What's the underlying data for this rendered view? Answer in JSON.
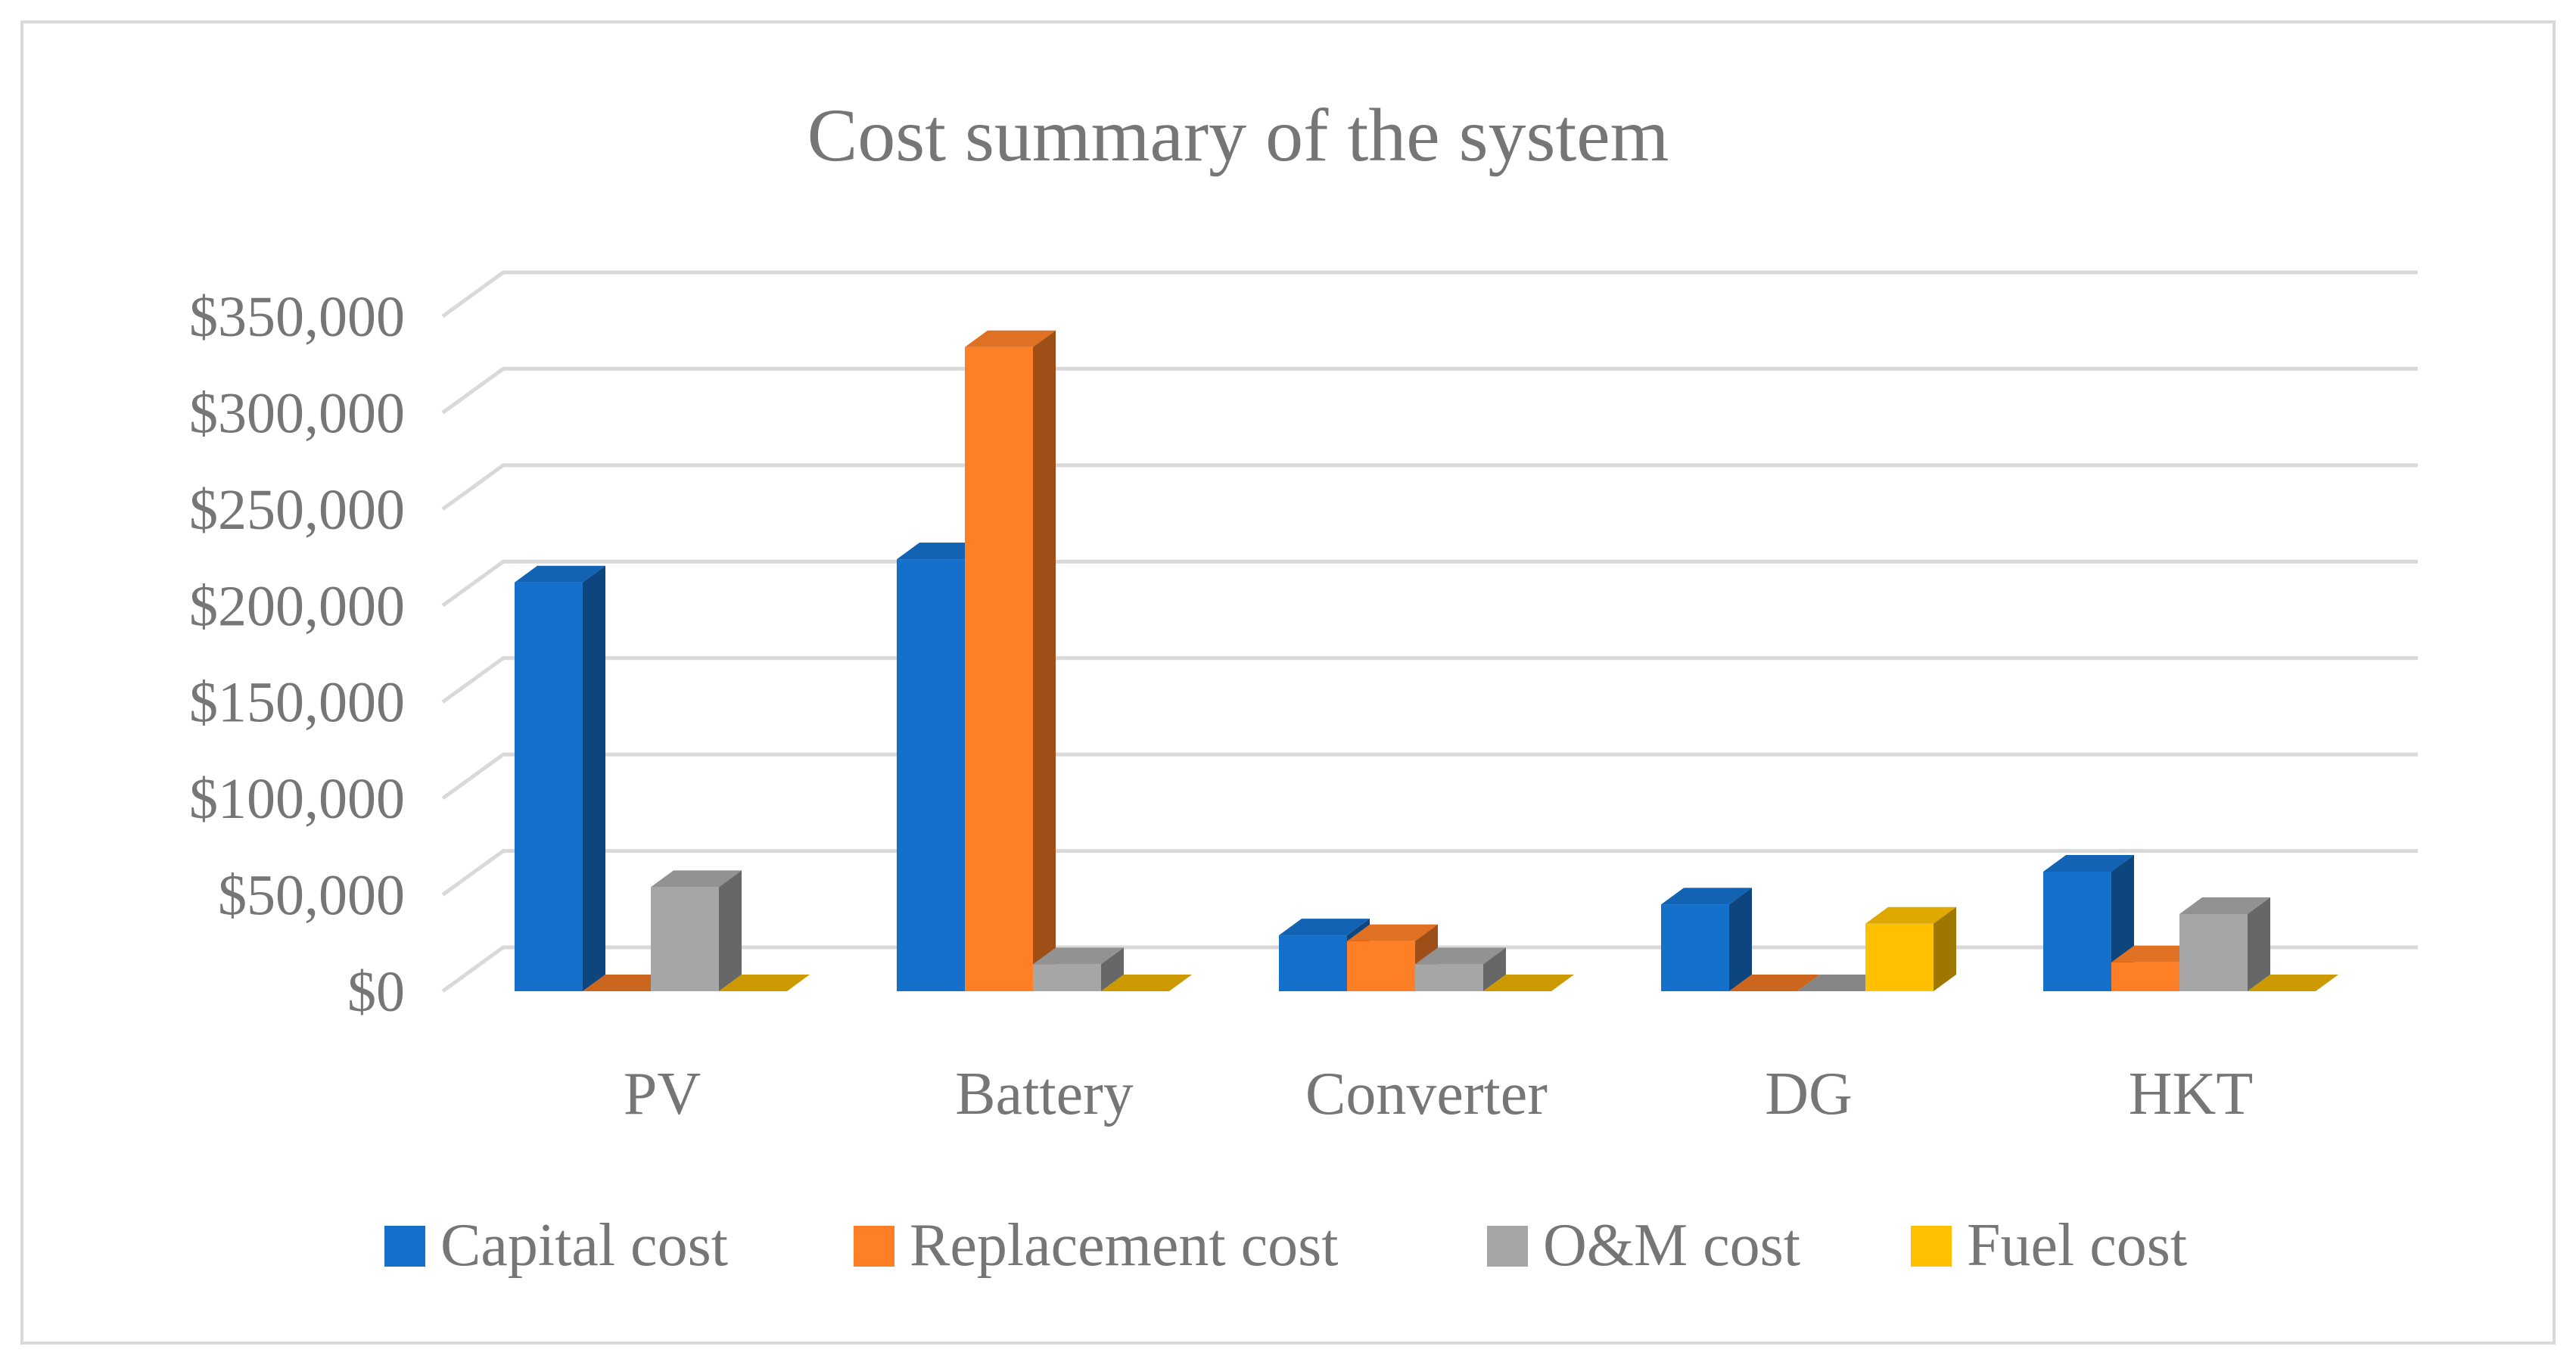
{
  "chart_data": {
    "type": "bar",
    "title": "Cost summary of the system",
    "xlabel": "",
    "ylabel": "",
    "ylim": [
      0,
      350000
    ],
    "yticks": [
      0,
      50000,
      100000,
      150000,
      200000,
      250000,
      300000,
      350000
    ],
    "ytick_labels": [
      "$0",
      "$50,000",
      "$100,000",
      "$150,000",
      "$200,000",
      "$250,000",
      "$300,000",
      "$350,000"
    ],
    "categories": [
      "PV",
      "Battery",
      "Converter",
      "DG",
      "HKT"
    ],
    "series": [
      {
        "name": "Capital cost",
        "color": "#1570CC",
        "values": [
          212000,
          224000,
          29000,
          45000,
          62000
        ]
      },
      {
        "name": "Replacement cost",
        "color": "#FF7F27",
        "values": [
          0,
          334000,
          26000,
          0,
          15000
        ]
      },
      {
        "name": "O&M cost",
        "color": "#A6A6A6",
        "values": [
          54000,
          14000,
          14000,
          0,
          40000
        ]
      },
      {
        "name": "Fuel cost",
        "color": "#FFC000",
        "values": [
          0,
          0,
          0,
          35000,
          0
        ]
      }
    ],
    "grid": true,
    "legend": "bottom"
  }
}
